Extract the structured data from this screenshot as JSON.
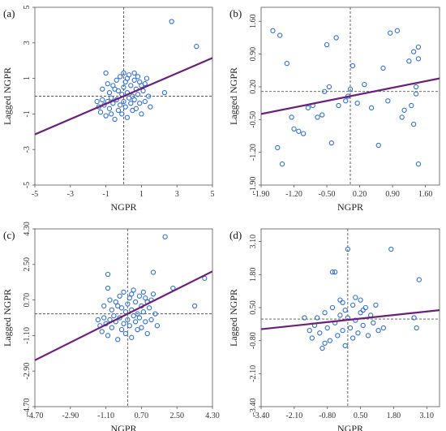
{
  "chart_data": [
    {
      "type": "scatter",
      "panel_label": "(a)",
      "xlabel": "NGPR",
      "ylabel": "Lagged NGPR",
      "xlim": [
        -5,
        5
      ],
      "ylim": [
        -5,
        5
      ],
      "xticks": [
        "-5",
        "-3",
        "-1",
        "1",
        "3",
        "5"
      ],
      "yticks": [
        "-5",
        "-3",
        "-1",
        "1",
        "3",
        "5"
      ],
      "xtick_values": [
        -5,
        -3,
        -1,
        1,
        3,
        5
      ],
      "ytick_values": [
        -5,
        -3,
        -1,
        1,
        3,
        5
      ],
      "mean_x": 0,
      "mean_y": 0,
      "fit_line": {
        "x": [
          -5,
          5
        ],
        "y": [
          -2.15,
          2.15
        ]
      },
      "points": [
        [
          -1.5,
          -0.3
        ],
        [
          -1.4,
          -0.6
        ],
        [
          -1.3,
          -0.9
        ],
        [
          -1.2,
          -0.2
        ],
        [
          -1.1,
          -0.5
        ],
        [
          -1.0,
          1.3
        ],
        [
          -1.0,
          -1.1
        ],
        [
          -0.9,
          -0.3
        ],
        [
          -0.8,
          0.2
        ],
        [
          -0.8,
          -0.7
        ],
        [
          -0.7,
          -0.1
        ],
        [
          -0.6,
          0.6
        ],
        [
          -0.6,
          -0.4
        ],
        [
          -0.5,
          -1.3
        ],
        [
          -0.4,
          0.9
        ],
        [
          -0.4,
          -0.2
        ],
        [
          -0.3,
          0.3
        ],
        [
          -0.3,
          -0.8
        ],
        [
          -0.2,
          1.1
        ],
        [
          -0.2,
          -0.5
        ],
        [
          -0.1,
          0.1
        ],
        [
          -0.1,
          -1.0
        ],
        [
          0.0,
          0.5
        ],
        [
          0.0,
          -0.3
        ],
        [
          0.1,
          0.8
        ],
        [
          0.1,
          -0.6
        ],
        [
          0.2,
          0.2
        ],
        [
          0.2,
          -1.2
        ],
        [
          0.3,
          1.2
        ],
        [
          0.3,
          -0.1
        ],
        [
          0.4,
          0.6
        ],
        [
          0.4,
          -0.4
        ],
        [
          0.5,
          0.0
        ],
        [
          0.5,
          -0.8
        ],
        [
          0.6,
          0.9
        ],
        [
          0.6,
          -0.2
        ],
        [
          0.7,
          0.4
        ],
        [
          0.7,
          -0.7
        ],
        [
          0.8,
          1.1
        ],
        [
          0.8,
          0.1
        ],
        [
          0.9,
          -0.4
        ],
        [
          1.0,
          0.6
        ],
        [
          1.0,
          -1.0
        ],
        [
          1.1,
          0.3
        ],
        [
          1.2,
          -0.3
        ],
        [
          1.3,
          1.0
        ],
        [
          1.4,
          0.0
        ],
        [
          1.5,
          -0.6
        ],
        [
          -1.2,
          0.4
        ],
        [
          -0.9,
          0.7
        ],
        [
          -0.5,
          0.4
        ],
        [
          0.2,
          1.0
        ],
        [
          0.9,
          0.8
        ],
        [
          1.2,
          0.7
        ],
        [
          2.3,
          0.2
        ],
        [
          2.7,
          4.2
        ],
        [
          4.1,
          2.8
        ],
        [
          -0.7,
          -1.0
        ],
        [
          0.0,
          1.3
        ],
        [
          0.6,
          1.3
        ]
      ]
    },
    {
      "type": "scatter",
      "panel_label": "(b)",
      "xlabel": "NGPR",
      "ylabel": "Lagged NGPR",
      "xlim": [
        -1.9,
        1.9
      ],
      "ylim": [
        -1.9,
        1.9
      ],
      "xticks": [
        "-1.90",
        "-1.20",
        "-0.50",
        "0.20",
        "0.90",
        "1.60"
      ],
      "yticks": [
        "-1.90",
        "-1.20",
        "-0.50",
        "0.20",
        "0.90",
        "1.60"
      ],
      "xtick_values": [
        -1.9,
        -1.2,
        -0.5,
        0.2,
        0.9,
        1.6
      ],
      "ytick_values": [
        -1.9,
        -1.2,
        -0.5,
        0.2,
        0.9,
        1.6
      ],
      "mean_x": 0.0,
      "mean_y": 0.1,
      "fit_line": {
        "x": [
          -1.9,
          1.9
        ],
        "y": [
          -0.38,
          0.38
        ]
      },
      "points": [
        [
          -1.65,
          1.4
        ],
        [
          -1.5,
          1.3
        ],
        [
          -1.55,
          -1.1
        ],
        [
          -1.45,
          -1.45
        ],
        [
          -1.35,
          0.7
        ],
        [
          -1.25,
          -0.45
        ],
        [
          -1.2,
          -0.7
        ],
        [
          -1.1,
          -0.75
        ],
        [
          -1.0,
          -0.8
        ],
        [
          -0.9,
          -0.25
        ],
        [
          -0.8,
          -0.2
        ],
        [
          -0.7,
          -0.45
        ],
        [
          -0.6,
          -0.4
        ],
        [
          -0.55,
          0.1
        ],
        [
          -0.5,
          1.1
        ],
        [
          -0.45,
          0.2
        ],
        [
          -0.4,
          -1.0
        ],
        [
          -0.3,
          1.25
        ],
        [
          -0.25,
          -0.2
        ],
        [
          -0.1,
          -0.1
        ],
        [
          -0.05,
          0.0
        ],
        [
          0.0,
          0.15
        ],
        [
          0.05,
          0.65
        ],
        [
          0.15,
          -0.15
        ],
        [
          0.3,
          0.25
        ],
        [
          0.45,
          -0.25
        ],
        [
          0.6,
          -1.05
        ],
        [
          0.7,
          0.6
        ],
        [
          0.8,
          -0.1
        ],
        [
          0.85,
          1.35
        ],
        [
          1.0,
          1.4
        ],
        [
          1.1,
          -0.45
        ],
        [
          1.15,
          -0.3
        ],
        [
          1.25,
          0.75
        ],
        [
          1.3,
          -0.2
        ],
        [
          1.35,
          0.95
        ],
        [
          1.35,
          -0.6
        ],
        [
          1.4,
          0.2
        ],
        [
          1.4,
          0.05
        ],
        [
          1.45,
          1.05
        ],
        [
          1.45,
          -1.45
        ],
        [
          1.45,
          0.8
        ]
      ]
    },
    {
      "type": "scatter",
      "panel_label": "(c)",
      "xlabel": "NGPR",
      "ylabel": "Lagged NGPR",
      "xlim": [
        -4.7,
        4.3
      ],
      "ylim": [
        -4.7,
        4.3
      ],
      "xticks": [
        "-4.70",
        "-2.90",
        "-1.10",
        "0.70",
        "2.50",
        "4.30"
      ],
      "yticks": [
        "-4.70",
        "-2.90",
        "-1.10",
        "0.70",
        "2.50",
        "4.30"
      ],
      "xtick_values": [
        -4.7,
        -2.9,
        -1.1,
        0.7,
        2.5,
        4.3
      ],
      "ytick_values": [
        -4.7,
        -2.9,
        -1.1,
        0.7,
        2.5,
        4.3
      ],
      "mean_x": 0.0,
      "mean_y": 0.0,
      "fit_line": {
        "x": [
          -4.7,
          4.3
        ],
        "y": [
          -2.35,
          2.15
        ]
      },
      "points": [
        [
          -1.5,
          -0.3
        ],
        [
          -1.4,
          -0.6
        ],
        [
          -1.3,
          -0.9
        ],
        [
          -1.2,
          -0.2
        ],
        [
          -1.1,
          -0.5
        ],
        [
          -1.0,
          1.3
        ],
        [
          -1.0,
          -1.1
        ],
        [
          -0.9,
          -0.3
        ],
        [
          -0.8,
          0.2
        ],
        [
          -0.8,
          -0.7
        ],
        [
          -0.7,
          -0.1
        ],
        [
          -0.6,
          0.6
        ],
        [
          -0.6,
          -0.4
        ],
        [
          -0.5,
          -1.3
        ],
        [
          -0.4,
          0.9
        ],
        [
          -0.4,
          -0.2
        ],
        [
          -0.3,
          0.3
        ],
        [
          -0.3,
          -0.8
        ],
        [
          -0.2,
          1.1
        ],
        [
          -0.2,
          -0.5
        ],
        [
          -0.1,
          0.1
        ],
        [
          -0.1,
          -1.0
        ],
        [
          0.0,
          0.5
        ],
        [
          0.0,
          -0.3
        ],
        [
          0.1,
          0.8
        ],
        [
          0.1,
          -0.6
        ],
        [
          0.2,
          0.2
        ],
        [
          0.2,
          -1.2
        ],
        [
          0.3,
          1.2
        ],
        [
          0.3,
          -0.1
        ],
        [
          0.4,
          0.6
        ],
        [
          0.4,
          -0.4
        ],
        [
          0.5,
          0.0
        ],
        [
          0.5,
          -0.8
        ],
        [
          0.6,
          0.9
        ],
        [
          0.6,
          -0.2
        ],
        [
          0.7,
          0.4
        ],
        [
          0.7,
          -0.7
        ],
        [
          0.8,
          1.1
        ],
        [
          0.8,
          0.1
        ],
        [
          0.9,
          -0.4
        ],
        [
          1.0,
          0.6
        ],
        [
          1.0,
          -1.0
        ],
        [
          1.1,
          0.3
        ],
        [
          1.2,
          -0.3
        ],
        [
          1.3,
          1.0
        ],
        [
          1.4,
          0.0
        ],
        [
          1.5,
          -0.6
        ],
        [
          -1.2,
          0.4
        ],
        [
          -0.9,
          0.7
        ],
        [
          -0.5,
          0.4
        ],
        [
          0.2,
          1.0
        ],
        [
          0.9,
          0.8
        ],
        [
          1.2,
          0.7
        ],
        [
          2.3,
          1.3
        ],
        [
          1.9,
          3.9
        ],
        [
          3.4,
          0.4
        ],
        [
          3.9,
          1.8
        ],
        [
          -1.0,
          2.0
        ],
        [
          1.3,
          2.1
        ]
      ]
    },
    {
      "type": "scatter",
      "panel_label": "(d)",
      "xlabel": "NGPR",
      "ylabel": "Lagged NGPR",
      "xlim": [
        -3.4,
        3.6
      ],
      "ylim": [
        -3.4,
        3.6
      ],
      "xticks": [
        "-3.40",
        "-2.10",
        "-0.80",
        "0.50",
        "1.80",
        "3.10"
      ],
      "yticks": [
        "-3.40",
        "-2.10",
        "-0.80",
        "0.50",
        "1.80",
        "3.10"
      ],
      "xtick_values": [
        -3.4,
        -2.1,
        -0.8,
        0.5,
        1.8,
        3.1
      ],
      "ytick_values": [
        -3.4,
        -2.1,
        -0.8,
        0.5,
        1.8,
        3.1
      ],
      "mean_x": 0.0,
      "mean_y": 0.05,
      "fit_line": {
        "x": [
          -3.4,
          3.6
        ],
        "y": [
          -0.35,
          0.4
        ]
      },
      "points": [
        [
          -1.5,
          -0.4
        ],
        [
          -1.4,
          -0.7
        ],
        [
          -1.3,
          -0.2
        ],
        [
          -1.2,
          0.1
        ],
        [
          -1.1,
          -0.5
        ],
        [
          -1.0,
          -1.1
        ],
        [
          -0.9,
          0.3
        ],
        [
          -0.8,
          -0.3
        ],
        [
          -0.7,
          -0.8
        ],
        [
          -0.6,
          0.5
        ],
        [
          -0.6,
          1.9
        ],
        [
          -0.5,
          1.9
        ],
        [
          -0.5,
          -0.1
        ],
        [
          -0.4,
          -0.6
        ],
        [
          -0.3,
          0.2
        ],
        [
          -0.3,
          0.8
        ],
        [
          -0.2,
          -0.4
        ],
        [
          -0.1,
          0.4
        ],
        [
          -0.1,
          -1.0
        ],
        [
          0.0,
          2.8
        ],
        [
          0.0,
          0.1
        ],
        [
          0.1,
          -0.3
        ],
        [
          0.2,
          0.6
        ],
        [
          0.2,
          -0.7
        ],
        [
          0.3,
          0.9
        ],
        [
          0.3,
          0.0
        ],
        [
          0.4,
          -0.5
        ],
        [
          0.5,
          0.3
        ],
        [
          0.5,
          0.8
        ],
        [
          0.6,
          -0.2
        ],
        [
          0.7,
          0.5
        ],
        [
          0.8,
          -0.6
        ],
        [
          0.9,
          0.2
        ],
        [
          1.0,
          -0.1
        ],
        [
          1.1,
          0.6
        ],
        [
          1.2,
          -0.4
        ],
        [
          1.4,
          -0.3
        ],
        [
          1.7,
          2.8
        ],
        [
          2.6,
          0.1
        ],
        [
          2.7,
          -0.3
        ],
        [
          2.8,
          1.6
        ],
        [
          -1.7,
          0.1
        ],
        [
          -0.9,
          -0.9
        ],
        [
          0.6,
          0.4
        ],
        [
          -0.2,
          0.7
        ]
      ]
    }
  ]
}
